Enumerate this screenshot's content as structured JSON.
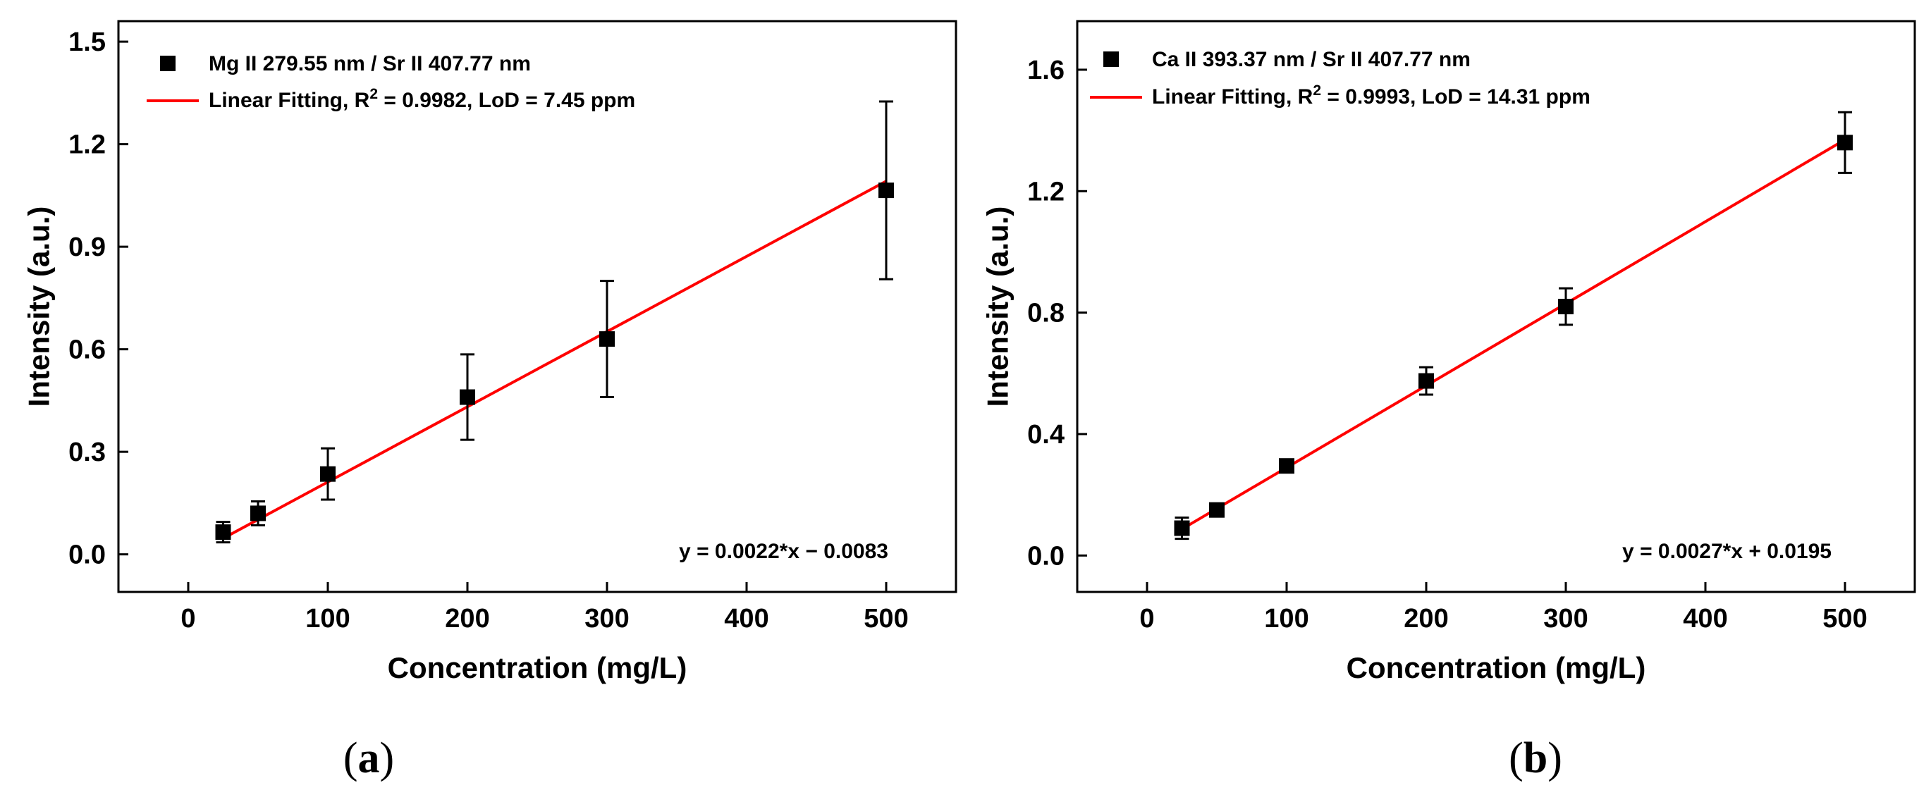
{
  "chart_data": [
    {
      "type": "scatter",
      "panel_label": "(a)",
      "panel_letter": "a",
      "xlabel": "Concentration (mg/L)",
      "ylabel": "Intensity (a.u.)",
      "xlim": [
        -50,
        550
      ],
      "ylim": [
        -0.11,
        1.56
      ],
      "xticks": [
        0,
        100,
        200,
        300,
        400,
        500
      ],
      "yticks": [
        0.0,
        0.3,
        0.6,
        0.9,
        1.2,
        1.5
      ],
      "ytick_labels": [
        "0.0",
        "0.3",
        "0.6",
        "0.9",
        "1.2",
        "1.5"
      ],
      "legend_position": "top-left",
      "series": [
        {
          "name": "Mg II 279.55 nm / Sr II 407.77 nm",
          "marker": "square",
          "color": "#000000",
          "x": [
            25,
            50,
            100,
            200,
            300,
            500
          ],
          "y": [
            0.065,
            0.12,
            0.235,
            0.46,
            0.63,
            1.065
          ],
          "yerr": [
            0.03,
            0.035,
            0.075,
            0.125,
            0.17,
            0.26
          ]
        }
      ],
      "fit": {
        "legend_prefix": "Linear Fitting, R",
        "legend_sup": "2",
        "legend_suffix": " = 0.9982, LoD = 7.45 ppm",
        "color": "#ff0000",
        "x_range": [
          25,
          500
        ],
        "slope": 0.0022,
        "intercept": -0.0083,
        "equation": "y = 0.0022*x − 0.0083"
      }
    },
    {
      "type": "scatter",
      "panel_label": "(b)",
      "panel_letter": "b",
      "xlabel": "Concentration (mg/L)",
      "ylabel": "Intensity (a.u.)",
      "xlim": [
        -50,
        550
      ],
      "ylim": [
        -0.12,
        1.76
      ],
      "xticks": [
        0,
        100,
        200,
        300,
        400,
        500
      ],
      "yticks": [
        0.0,
        0.4,
        0.8,
        1.2,
        1.6
      ],
      "ytick_labels": [
        "0.0",
        "0.4",
        "0.8",
        "1.2",
        "1.6"
      ],
      "legend_position": "top-left",
      "series": [
        {
          "name": "Ca II 393.37 nm / Sr II 407.77 nm",
          "marker": "square",
          "color": "#000000",
          "x": [
            25,
            50,
            100,
            200,
            300,
            500
          ],
          "y": [
            0.09,
            0.15,
            0.295,
            0.575,
            0.82,
            1.36
          ],
          "yerr": [
            0.035,
            0.02,
            0.02,
            0.045,
            0.06,
            0.1
          ]
        }
      ],
      "fit": {
        "legend_prefix": "Linear Fitting, R",
        "legend_sup": "2",
        "legend_suffix": " = 0.9993, LoD = 14.31 ppm",
        "color": "#ff0000",
        "x_range": [
          25,
          500
        ],
        "slope": 0.0027,
        "intercept": 0.0195,
        "equation": "y = 0.0027*x + 0.0195"
      }
    }
  ]
}
